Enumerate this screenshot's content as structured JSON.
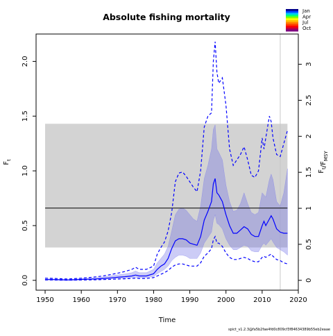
{
  "chart_data": {
    "type": "line",
    "title": "Absolute fishing mortality",
    "xlabel": "Time",
    "ylabel_left": "F_t",
    "ylabel_right": "F_t/F_MSY",
    "xlim": [
      1947.5,
      2020
    ],
    "ylim": [
      -0.09,
      2.25
    ],
    "xticks": [
      1950,
      1960,
      1970,
      1980,
      1990,
      2000,
      2010,
      2020
    ],
    "xtick_labels": [
      "1950",
      "1960",
      "1970",
      "1980",
      "1990",
      "2000",
      "2010",
      "2020"
    ],
    "yticks": [
      0.0,
      0.5,
      1.0,
      1.5,
      2.0
    ],
    "ytick_labels": [
      "0.0",
      "0.5",
      "1.0",
      "1.5",
      "2.0"
    ],
    "ratio_per_F": 1.52,
    "yticks_right": [
      0,
      0.5,
      1,
      1.5,
      2,
      2.5,
      3
    ],
    "ytick_labels_right": [
      "0",
      "0.5",
      "1",
      "1.5",
      "2",
      "2.5",
      "3"
    ],
    "fmsy_reference": 0.66,
    "fmsy_band": [
      0.3,
      1.43
    ],
    "fmsy_band_years": [
      1950,
      2017
    ],
    "vertical_marker_year": 2015,
    "years": [
      1950,
      1952,
      1954,
      1956,
      1958,
      1960,
      1962,
      1964,
      1966,
      1968,
      1970,
      1972,
      1974,
      1975,
      1976,
      1978,
      1980,
      1981,
      1982,
      1983,
      1984,
      1985,
      1986,
      1987,
      1988,
      1989,
      1990,
      1991,
      1992,
      1993,
      1994,
      1995,
      1996,
      1996.5,
      1997,
      1997.5,
      1998,
      1999,
      2000,
      2001,
      2002,
      2003,
      2004,
      2005,
      2006,
      2007,
      2008,
      2009,
      2010,
      2010.5,
      2011,
      2012,
      2012.5,
      2013,
      2014,
      2015,
      2016,
      2017
    ],
    "series": [
      {
        "name": "F_t estimate",
        "style": "solid",
        "color": "#0000ff",
        "values": [
          0.007,
          0.007,
          0.005,
          0.003,
          0.005,
          0.008,
          0.01,
          0.013,
          0.017,
          0.022,
          0.028,
          0.033,
          0.04,
          0.048,
          0.04,
          0.04,
          0.06,
          0.1,
          0.13,
          0.15,
          0.2,
          0.29,
          0.36,
          0.38,
          0.38,
          0.37,
          0.34,
          0.33,
          0.32,
          0.4,
          0.55,
          0.63,
          0.72,
          0.88,
          0.93,
          0.8,
          0.78,
          0.72,
          0.6,
          0.5,
          0.43,
          0.43,
          0.46,
          0.49,
          0.47,
          0.42,
          0.4,
          0.4,
          0.5,
          0.54,
          0.5,
          0.56,
          0.59,
          0.56,
          0.47,
          0.44,
          0.43,
          0.43
        ]
      },
      {
        "name": "CI upper",
        "style": "dashed",
        "color": "#0000ff",
        "values": [
          0.02,
          0.018,
          0.015,
          0.012,
          0.015,
          0.02,
          0.025,
          0.032,
          0.04,
          0.052,
          0.065,
          0.08,
          0.1,
          0.12,
          0.1,
          0.1,
          0.13,
          0.24,
          0.3,
          0.35,
          0.45,
          0.62,
          0.9,
          0.98,
          0.99,
          0.95,
          0.9,
          0.85,
          0.81,
          1.0,
          1.4,
          1.5,
          1.53,
          2.0,
          2.18,
          1.9,
          1.8,
          1.85,
          1.6,
          1.2,
          1.05,
          1.1,
          1.15,
          1.22,
          1.1,
          0.96,
          0.94,
          1.0,
          1.3,
          1.2,
          1.3,
          1.5,
          1.45,
          1.3,
          1.15,
          1.13,
          1.25,
          1.37
        ]
      },
      {
        "name": "CI lower",
        "style": "dashed",
        "color": "#0000ff",
        "values": [
          0.003,
          0.003,
          0.002,
          0.001,
          0.002,
          0.003,
          0.004,
          0.005,
          0.007,
          0.009,
          0.012,
          0.014,
          0.017,
          0.02,
          0.017,
          0.017,
          0.025,
          0.04,
          0.055,
          0.07,
          0.09,
          0.12,
          0.14,
          0.15,
          0.15,
          0.14,
          0.13,
          0.13,
          0.13,
          0.16,
          0.22,
          0.25,
          0.29,
          0.37,
          0.4,
          0.34,
          0.34,
          0.31,
          0.25,
          0.21,
          0.19,
          0.19,
          0.2,
          0.21,
          0.2,
          0.18,
          0.17,
          0.17,
          0.21,
          0.22,
          0.21,
          0.23,
          0.24,
          0.22,
          0.19,
          0.18,
          0.16,
          0.15
        ]
      },
      {
        "name": "band upper",
        "style": "fill",
        "color": "#8080e0",
        "values": [
          0.014,
          0.013,
          0.01,
          0.008,
          0.01,
          0.015,
          0.019,
          0.024,
          0.031,
          0.04,
          0.05,
          0.058,
          0.07,
          0.085,
          0.07,
          0.07,
          0.1,
          0.16,
          0.2,
          0.24,
          0.31,
          0.45,
          0.6,
          0.65,
          0.66,
          0.64,
          0.6,
          0.56,
          0.54,
          0.68,
          0.93,
          1.05,
          1.2,
          1.38,
          1.42,
          1.2,
          1.17,
          1.1,
          0.87,
          0.72,
          0.63,
          0.64,
          0.7,
          0.8,
          0.7,
          0.62,
          0.6,
          0.62,
          0.8,
          0.78,
          0.76,
          0.92,
          0.97,
          0.92,
          0.72,
          0.68,
          0.8,
          1.02
        ]
      },
      {
        "name": "band lower",
        "style": "fill",
        "color": "#8080e0",
        "values": [
          0.004,
          0.004,
          0.003,
          0.002,
          0.003,
          0.005,
          0.006,
          0.008,
          0.01,
          0.013,
          0.017,
          0.02,
          0.024,
          0.028,
          0.024,
          0.024,
          0.035,
          0.06,
          0.08,
          0.1,
          0.13,
          0.18,
          0.21,
          0.23,
          0.23,
          0.22,
          0.2,
          0.2,
          0.2,
          0.25,
          0.34,
          0.39,
          0.44,
          0.55,
          0.6,
          0.52,
          0.51,
          0.47,
          0.38,
          0.32,
          0.28,
          0.28,
          0.3,
          0.32,
          0.31,
          0.27,
          0.26,
          0.26,
          0.32,
          0.34,
          0.32,
          0.36,
          0.38,
          0.35,
          0.3,
          0.28,
          0.26,
          0.23
        ]
      }
    ],
    "legend": {
      "placement": "top-right",
      "labels": [
        "Jan",
        "Apr",
        "Jul",
        "Oct"
      ],
      "colors": [
        "#00008b",
        "#0040ff",
        "#00c0ff",
        "#00ff80",
        "#80ff00",
        "#ffff00",
        "#ffc000",
        "#ff8000",
        "#ff4000",
        "#ff0000",
        "#c00040",
        "#800080"
      ]
    },
    "footer": "spict_v1.2.3@fa5b2fae4fd0c809cf3f84634389b55eb2eaae"
  }
}
